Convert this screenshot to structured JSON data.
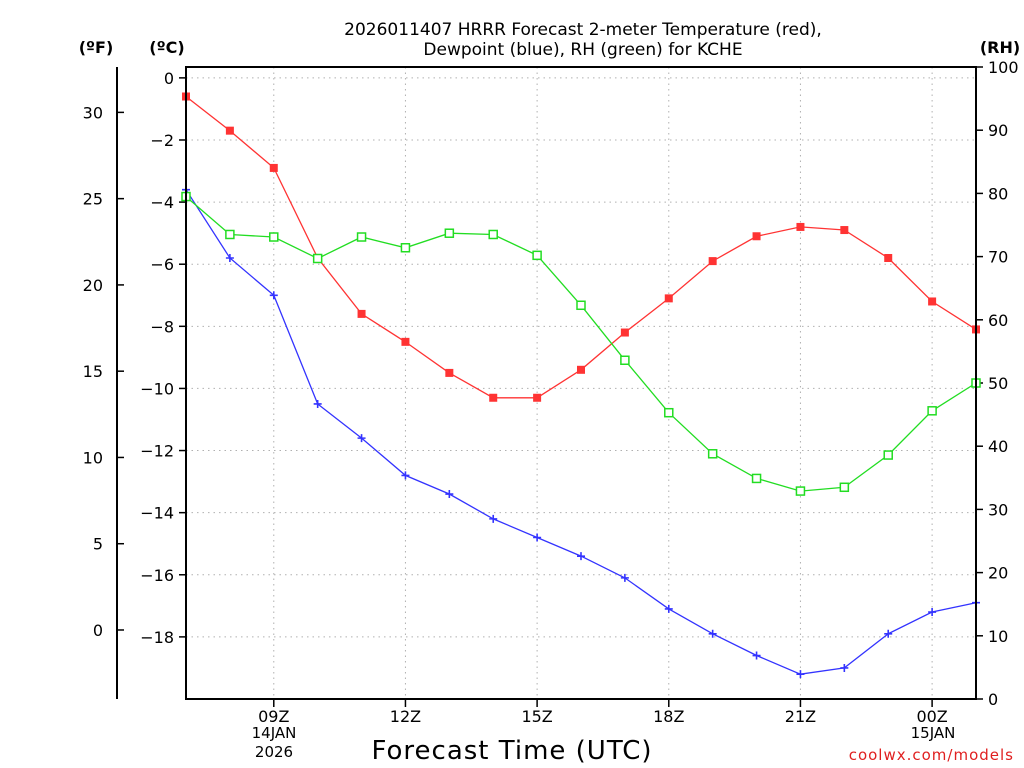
{
  "title": {
    "line1": "2026011407 HRRR Forecast 2-meter Temperature (red),",
    "line2": "Dewpoint (blue), RH (green) for KCHE"
  },
  "axes": {
    "f_label": "(ºF)",
    "c_label": "(ºC)",
    "rh_label": "(RH)",
    "xtitle": "Forecast Time (UTC)",
    "date1": "14JAN",
    "year1": "2026",
    "date2": "15JAN"
  },
  "credit": "coolwx.com/models",
  "chart_data": {
    "type": "line",
    "title": "2026011407 HRRR Forecast 2-meter Temperature (red), Dewpoint (blue), RH (green) for KCHE",
    "xlabel": "Forecast Time (UTC)",
    "x": [
      7,
      8,
      9,
      10,
      11,
      12,
      13,
      14,
      15,
      16,
      17,
      18,
      19,
      20,
      21,
      22,
      23,
      24,
      25
    ],
    "xlim": [
      7,
      25
    ],
    "xticks": [
      9,
      12,
      15,
      18,
      21,
      24
    ],
    "xtick_labels": [
      "09Z",
      "12Z",
      "15Z",
      "18Z",
      "21Z",
      "00Z"
    ],
    "ylim_c": [
      -20.0,
      0.35
    ],
    "yticks_c": [
      0,
      -2,
      -4,
      -6,
      -8,
      -10,
      -12,
      -14,
      -16,
      -18
    ],
    "yticks_c_labels": [
      "0",
      "−2",
      "−4",
      "−6",
      "−8",
      "−10",
      "−12",
      "−14",
      "−16",
      "−18"
    ],
    "yticks_f": [
      30,
      25,
      20,
      15,
      10,
      5,
      0
    ],
    "yticks_f_labels": [
      "30",
      "25",
      "20",
      "15",
      "10",
      "5",
      "0"
    ],
    "ylim_rh": [
      0,
      100
    ],
    "yticks_rh": [
      100,
      90,
      80,
      70,
      60,
      50,
      40,
      30,
      20,
      10,
      0
    ],
    "yticks_rh_labels": [
      "100",
      "90",
      "80",
      "70",
      "60",
      "50",
      "40",
      "30",
      "20",
      "10",
      "0"
    ],
    "series": [
      {
        "name": "Temperature",
        "units": "C",
        "axis": "celsius",
        "color": "#ff3333",
        "marker": "filled-square",
        "values": [
          -0.6,
          -1.7,
          -2.9,
          -5.8,
          -7.6,
          -8.5,
          -9.5,
          -10.3,
          -10.3,
          -9.4,
          -8.2,
          -7.1,
          -5.9,
          -5.1,
          -4.8,
          -4.9,
          -5.8,
          -7.2,
          -8.1
        ]
      },
      {
        "name": "Dewpoint",
        "units": "C",
        "axis": "celsius",
        "color": "#3333ff",
        "marker": "plus",
        "values": [
          -3.6,
          -5.8,
          -7.0,
          -10.5,
          -11.6,
          -12.8,
          -13.4,
          -14.2,
          -14.8,
          -15.4,
          -16.1,
          -17.1,
          -17.9,
          -18.6,
          -19.2,
          -19.0,
          -17.9,
          -17.2,
          -16.9
        ]
      },
      {
        "name": "RH",
        "units": "%",
        "axis": "rh",
        "color": "#22dd22",
        "marker": "open-square",
        "values": [
          79.5,
          73.5,
          73.1,
          69.7,
          73.1,
          71.4,
          73.7,
          73.5,
          70.2,
          62.3,
          53.6,
          45.3,
          38.8,
          34.9,
          32.9,
          33.5,
          38.6,
          45.6,
          50.0
        ]
      }
    ]
  }
}
